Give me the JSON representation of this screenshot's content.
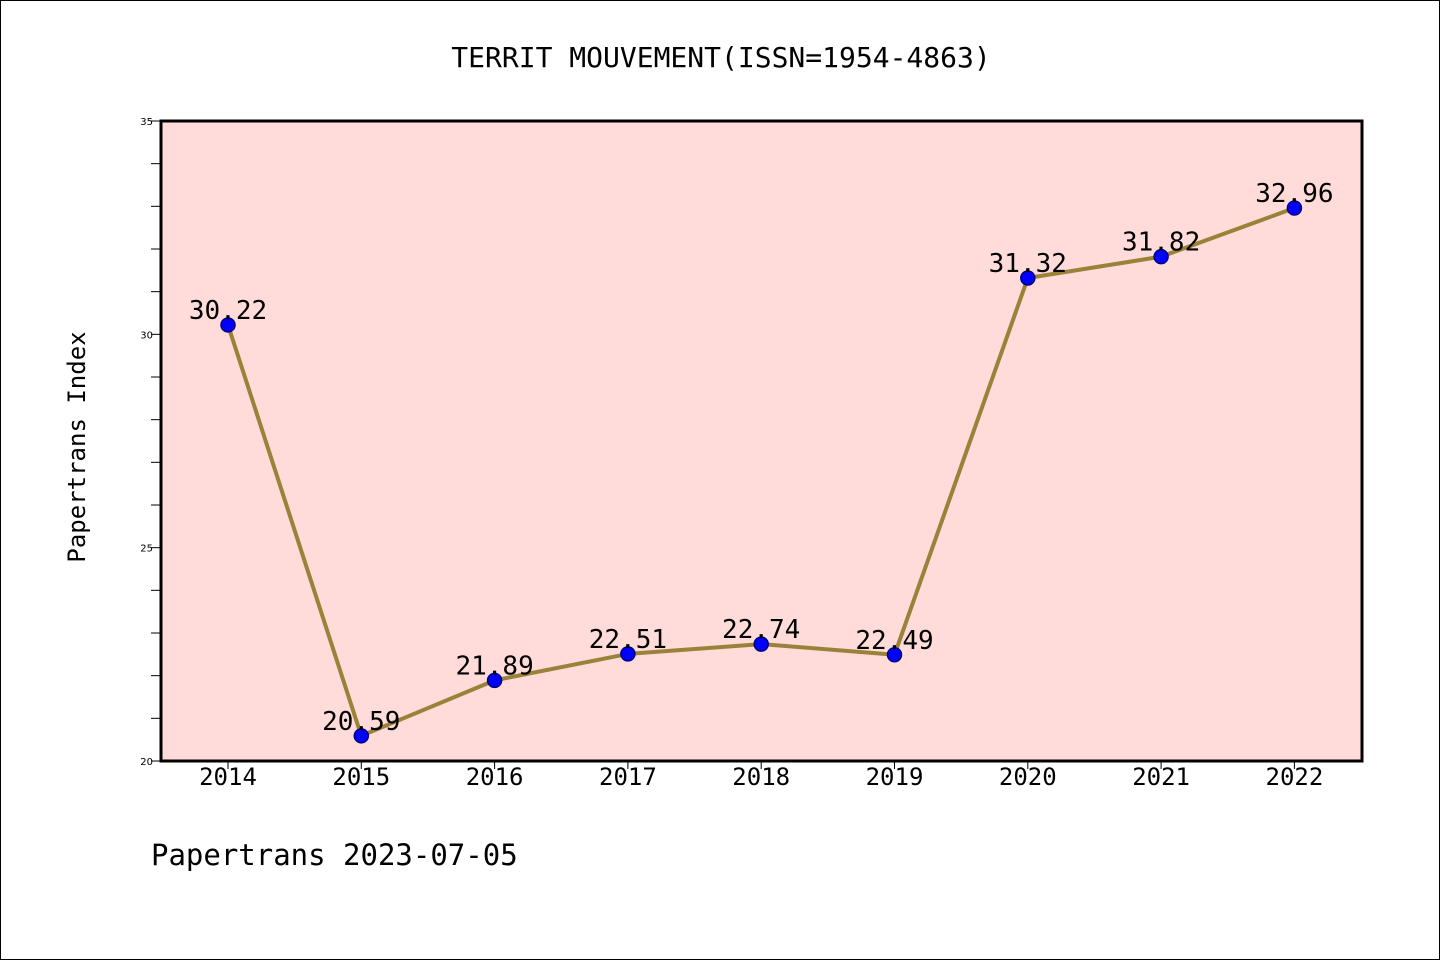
{
  "chart_data": {
    "type": "line",
    "title": "TERRIT MOUVEMENT(ISSN=1954-4863)",
    "xlabel": "",
    "ylabel": "Papertrans Index",
    "categories": [
      "2014",
      "2015",
      "2016",
      "2017",
      "2018",
      "2019",
      "2020",
      "2021",
      "2022"
    ],
    "values": [
      30.22,
      20.59,
      21.89,
      22.51,
      22.74,
      22.49,
      31.32,
      31.82,
      32.96
    ],
    "data_labels": [
      "30.22",
      "20.59",
      "21.89",
      "22.51",
      "22.74",
      "22.49",
      "31.32",
      "31.82",
      "32.96"
    ],
    "ylim": [
      20,
      35
    ],
    "yticks": [
      "20",
      "25",
      "30",
      "35"
    ],
    "grid": false,
    "legend": "none",
    "colors": {
      "plot_background": "#ffdcda",
      "line": "#9a8238",
      "marker_fill": "#0000ff",
      "marker_edge": "#000080"
    }
  },
  "footer": {
    "text": "Papertrans 2023-07-05"
  }
}
